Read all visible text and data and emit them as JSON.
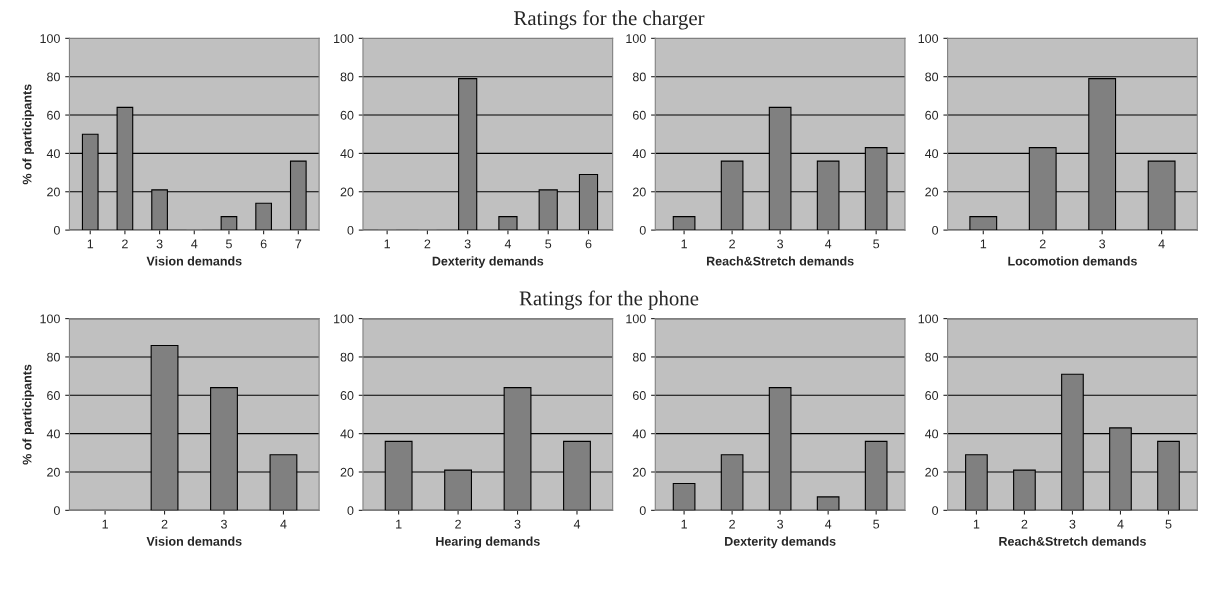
{
  "chart_data": [
    {
      "type": "bar",
      "xlabel": "Vision demands",
      "ylabel": "% of participants",
      "categories": [
        "1",
        "2",
        "3",
        "4",
        "5",
        "6",
        "7"
      ],
      "values": [
        50,
        64,
        21,
        0,
        7,
        14,
        36
      ],
      "color": "#808080",
      "ylim": [
        0,
        100
      ],
      "yticks": [
        0,
        20,
        40,
        60,
        80,
        100
      ],
      "grid": "y"
    },
    {
      "type": "bar",
      "xlabel": "Dexterity demands",
      "categories": [
        "1",
        "2",
        "3",
        "4",
        "5",
        "6"
      ],
      "values": [
        0,
        0,
        79,
        7,
        21,
        29
      ],
      "color": "#808080",
      "ylim": [
        0,
        100
      ],
      "yticks": [
        0,
        20,
        40,
        60,
        80,
        100
      ],
      "grid": "y"
    },
    {
      "type": "bar",
      "title": "Ratings for the charger",
      "xlabel": "Reach&Stretch demands",
      "categories": [
        "1",
        "2",
        "3",
        "4",
        "5"
      ],
      "values": [
        7,
        36,
        64,
        36,
        43
      ],
      "color": "#808080",
      "ylim": [
        0,
        100
      ],
      "yticks": [
        0,
        20,
        40,
        60,
        80,
        100
      ],
      "grid": "y"
    },
    {
      "type": "bar",
      "xlabel": "Locomotion demands",
      "categories": [
        "1",
        "2",
        "3",
        "4"
      ],
      "values": [
        7,
        43,
        79,
        36
      ],
      "color": "#808080",
      "ylim": [
        0,
        100
      ],
      "yticks": [
        0,
        20,
        40,
        60,
        80,
        100
      ],
      "grid": "y"
    },
    {
      "type": "bar",
      "xlabel": "Vision demands",
      "ylabel": "% of participants",
      "categories": [
        "1",
        "2",
        "3",
        "4"
      ],
      "values": [
        0,
        86,
        64,
        29
      ],
      "color": "#808080",
      "ylim": [
        0,
        100
      ],
      "yticks": [
        0,
        20,
        40,
        60,
        80,
        100
      ],
      "grid": "y"
    },
    {
      "type": "bar",
      "xlabel": "Hearing demands",
      "categories": [
        "1",
        "2",
        "3",
        "4"
      ],
      "values": [
        36,
        21,
        64,
        36
      ],
      "color": "#808080",
      "ylim": [
        0,
        100
      ],
      "yticks": [
        0,
        20,
        40,
        60,
        80,
        100
      ],
      "grid": "y"
    },
    {
      "type": "bar",
      "title": "Ratings for the phone",
      "xlabel": "Dexterity demands",
      "categories": [
        "1",
        "2",
        "3",
        "4",
        "5"
      ],
      "values": [
        14,
        29,
        64,
        7,
        36
      ],
      "color": "#808080",
      "ylim": [
        0,
        100
      ],
      "yticks": [
        0,
        20,
        40,
        60,
        80,
        100
      ],
      "grid": "y"
    },
    {
      "type": "bar",
      "xlabel": "Reach&Stretch demands",
      "categories": [
        "1",
        "2",
        "3",
        "4",
        "5"
      ],
      "values": [
        29,
        21,
        71,
        43,
        36
      ],
      "color": "#808080",
      "ylim": [
        0,
        100
      ],
      "yticks": [
        0,
        20,
        40,
        60,
        80,
        100
      ],
      "grid": "y"
    }
  ]
}
